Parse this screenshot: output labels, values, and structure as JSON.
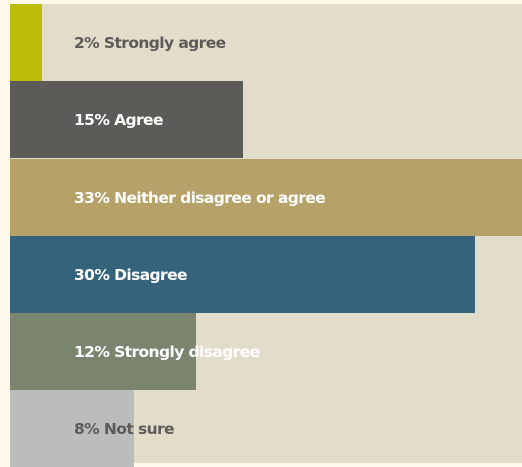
{
  "chart_data": {
    "type": "bar",
    "orientation": "horizontal",
    "unit": "%",
    "xlim": [
      0,
      33
    ],
    "categories": [
      "Strongly agree",
      "Agree",
      "Neither disagree or agree",
      "Disagree",
      "Strongly disagree",
      "Not sure"
    ],
    "values": [
      2,
      15,
      33,
      30,
      12,
      8
    ],
    "labels": [
      "2% Strongly agree",
      "15% Agree",
      "33% Neither disagree or agree",
      "30% Disagree",
      "12% Strongly disagree",
      "8% Not sure"
    ],
    "colors": [
      "#bbbd0a",
      "#5d5b58",
      "#b6a168",
      "#35637c",
      "#7b846e",
      "#bcbcba"
    ],
    "label_colors": [
      "#5d5b58",
      "#ffffff",
      "#ffffff",
      "#ffffff",
      "#ffffff",
      "#5d5b58"
    ],
    "background": "#e2ddcb",
    "grid": false,
    "legend": "none"
  }
}
